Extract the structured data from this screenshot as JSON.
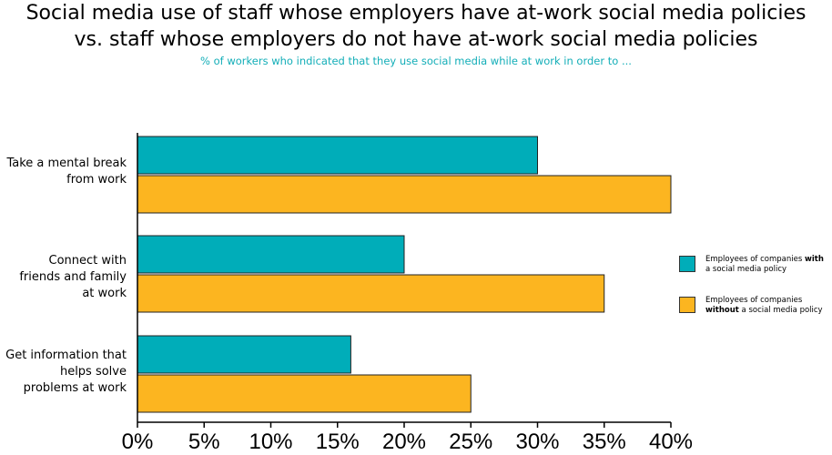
{
  "title_line1": "Social media use of staff whose employers have at-work social media policies",
  "title_line2": "vs. staff whose employers do not have at-work social media policies",
  "subtitle": "% of workers who indicated that they use social media while at work in order to ...",
  "legend": {
    "with": {
      "pre": "Employees of companies ",
      "bold": "with",
      "post": "a social media policy"
    },
    "without": {
      "pre": "Employees of companies",
      "bold": "without",
      "post": " a social media policy"
    }
  },
  "colors": {
    "with": "#00adb9",
    "without": "#fcb520"
  },
  "chart_data": {
    "type": "bar",
    "orientation": "horizontal",
    "categories": [
      [
        "Take a mental break",
        "from work"
      ],
      [
        "Connect with",
        "friends and family",
        "at work"
      ],
      [
        "Get information that",
        "helps solve",
        "problems at work"
      ]
    ],
    "series": [
      {
        "name": "Employees of companies with a social media policy",
        "values": [
          30,
          20,
          16
        ]
      },
      {
        "name": "Employees of companies without a social media policy",
        "values": [
          40,
          35,
          25
        ]
      }
    ],
    "xlim": [
      0,
      40
    ],
    "ticks": [
      0,
      5,
      10,
      15,
      20,
      25,
      30,
      35,
      40
    ],
    "tick_labels": [
      "0%",
      "5%",
      "10%",
      "15%",
      "20%",
      "25%",
      "30%",
      "35%",
      "40%"
    ],
    "legend_position": "right"
  }
}
